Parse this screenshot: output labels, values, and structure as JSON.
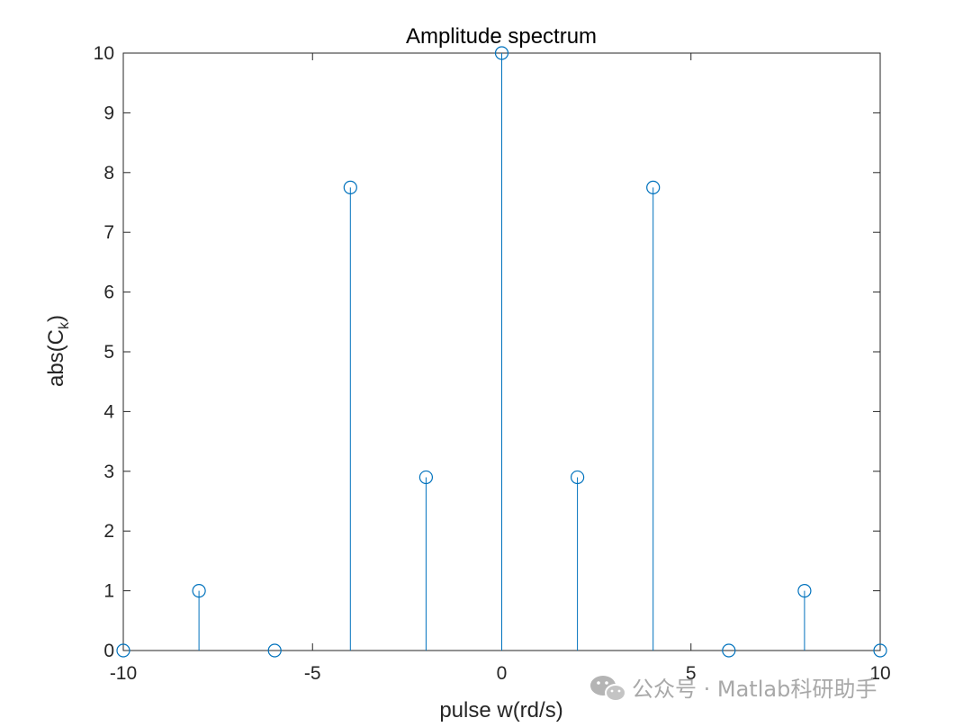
{
  "chart_data": {
    "type": "stem",
    "title": "Amplitude spectrum",
    "xlabel": "pulse w(rd/s)",
    "ylabel": {
      "main": "abs(C",
      "subscript": "k",
      "close": ")"
    },
    "xlim": [
      -10,
      10
    ],
    "ylim": [
      0,
      10
    ],
    "xticks": [
      -10,
      -5,
      0,
      5,
      10
    ],
    "xtick_labels": [
      "-10",
      "-5",
      "0",
      "5",
      "10"
    ],
    "yticks": [
      0,
      1,
      2,
      3,
      4,
      5,
      6,
      7,
      8,
      9,
      10
    ],
    "ytick_labels": [
      "0",
      "1",
      "2",
      "3",
      "4",
      "5",
      "6",
      "7",
      "8",
      "9",
      "10"
    ],
    "grid": false,
    "box": true,
    "series": [
      {
        "x": [
          -10,
          -8,
          -6,
          -4,
          -2,
          0,
          2,
          4,
          6,
          8,
          10
        ],
        "y": [
          0,
          1,
          0,
          7.75,
          2.9,
          10,
          2.9,
          7.75,
          0,
          1,
          0
        ],
        "color": "#0072BD",
        "marker": "circle-open"
      }
    ]
  },
  "watermark": {
    "text": "公众号 · Matlab科研助手",
    "icon": "wechat-icon",
    "color": "#a8a8a8"
  }
}
